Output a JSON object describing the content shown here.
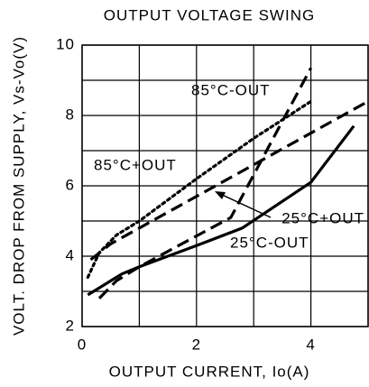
{
  "chart_data": {
    "type": "line",
    "title": "OUTPUT VOLTAGE SWING",
    "x_label": "OUTPUT CURRENT, Io(A)",
    "y_label": "VOLT. DROP FROM SUPPLY, Vs-Vo(V)",
    "xlim": [
      0,
      5
    ],
    "ylim": [
      2,
      10
    ],
    "xticks": [
      0,
      2,
      4
    ],
    "yticks": [
      2,
      4,
      6,
      8,
      10
    ],
    "minor_xticks": [
      1,
      3,
      5
    ],
    "minor_yticks": [
      3,
      5,
      7,
      9
    ],
    "grid": true,
    "series": [
      {
        "name": "85°C-OUT",
        "color": "#000000",
        "style": "dotted",
        "x": [
          0.1,
          0.3,
          0.6,
          1,
          2,
          3,
          4
        ],
        "values": [
          3.4,
          4.1,
          4.6,
          5.0,
          6.2,
          7.35,
          8.4
        ]
      },
      {
        "name": "85°C+OUT",
        "color": "#000000",
        "style": "dashed",
        "x": [
          0.15,
          0.5,
          1,
          5
        ],
        "values": [
          3.9,
          4.35,
          4.8,
          8.4
        ]
      },
      {
        "name": "25°C+OUT",
        "color": "#000000",
        "style": "dashed",
        "x": [
          0.3,
          0.6,
          1,
          2.6,
          4
        ],
        "values": [
          2.8,
          3.3,
          3.7,
          5.1,
          9.35
        ]
      },
      {
        "name": "25°C-OUT",
        "color": "#000000",
        "style": "solid",
        "x": [
          0.1,
          0.4,
          0.7,
          1,
          2,
          2.8,
          4,
          4.75
        ],
        "values": [
          2.9,
          3.2,
          3.5,
          3.7,
          4.3,
          4.8,
          6.1,
          7.7
        ]
      }
    ]
  }
}
